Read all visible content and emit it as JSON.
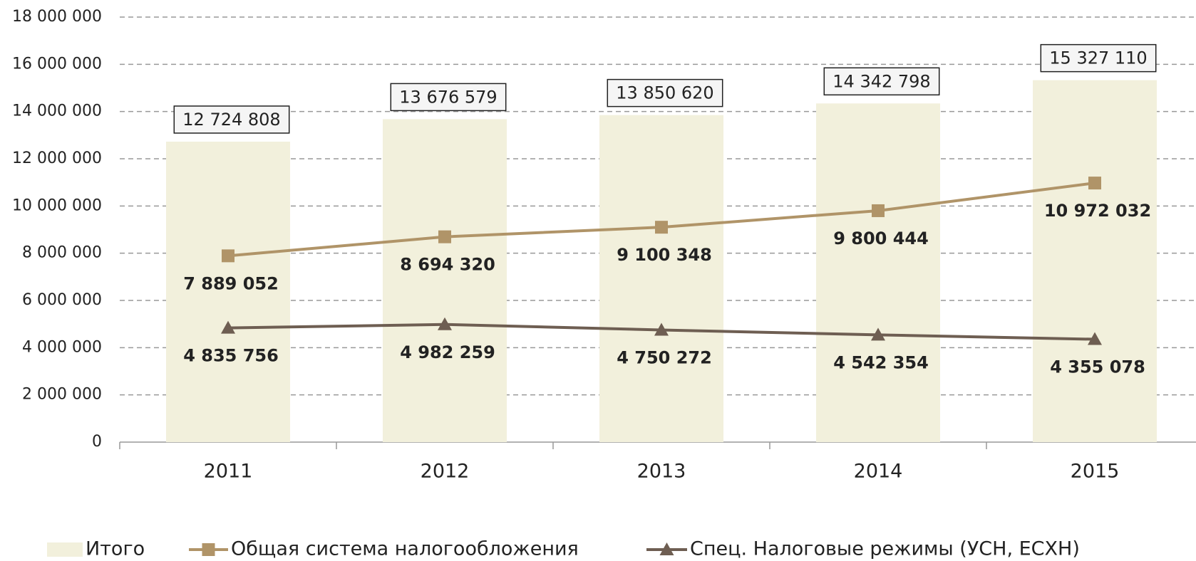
{
  "chart_data": {
    "type": "bar",
    "categories": [
      "2011",
      "2012",
      "2013",
      "2014",
      "2015"
    ],
    "series": [
      {
        "name": "Итого",
        "type": "bar",
        "color": "#f2f0dc",
        "values": [
          12724808,
          13676579,
          13850620,
          14342798,
          15327110
        ],
        "value_labels": [
          "12 724 808",
          "13 676 579",
          "13 850 620",
          "14 342 798",
          "15 327 110"
        ]
      },
      {
        "name": "Общая система налогообложения",
        "type": "line",
        "marker": "square",
        "color": "#b09468",
        "values": [
          7889052,
          8694320,
          9100348,
          9800444,
          10972032
        ],
        "value_labels": [
          "7 889 052",
          "8 694 320",
          "9 100 348",
          "9 800 444",
          "10 972 032"
        ]
      },
      {
        "name": "Спец. Налоговые режимы (УСН, ЕСХН)",
        "type": "line",
        "marker": "triangle",
        "color": "#6e5e52",
        "values": [
          4835756,
          4982259,
          4750272,
          4542354,
          4355078
        ],
        "value_labels": [
          "4 835 756",
          "4 982 259",
          "4 750 272",
          "4 542 354",
          "4 355 078"
        ]
      }
    ],
    "ylim": [
      0,
      18000000
    ],
    "yticks": [
      0,
      {
        "value": 2000000,
        "label": "2 000 000"
      },
      {
        "value": 4000000,
        "label": "4 000 000"
      },
      {
        "value": 6000000,
        "label": "6 000 000"
      },
      {
        "value": 8000000,
        "label": "8 000 000"
      },
      {
        "value": 10000000,
        "label": "10 000 000"
      },
      {
        "value": 12000000,
        "label": "12 000 000"
      },
      {
        "value": 14000000,
        "label": "14 000 000"
      },
      {
        "value": 16000000,
        "label": "16 000 000"
      },
      {
        "value": 18000000,
        "label": "18 000 000"
      }
    ],
    "grid": true,
    "legend": "bottom"
  }
}
